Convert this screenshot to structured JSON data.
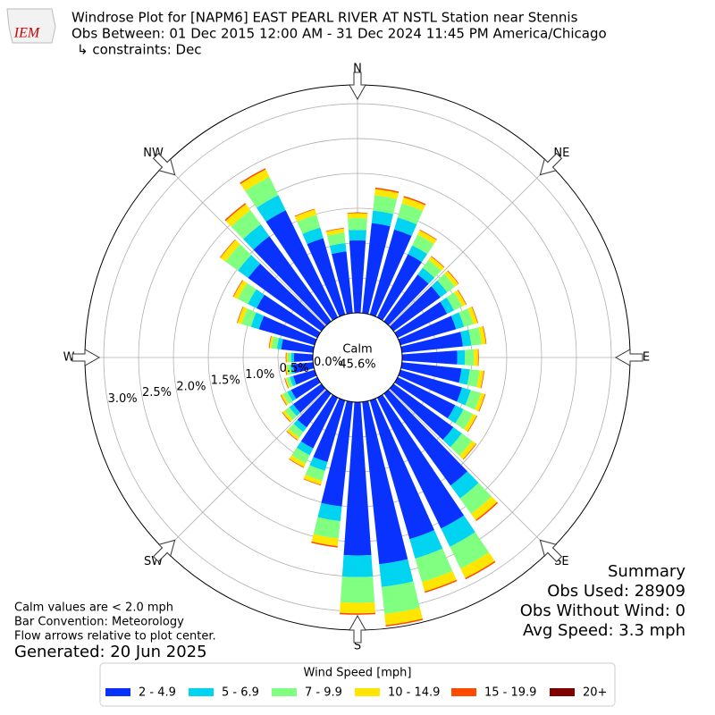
{
  "logo": "IEM",
  "chart_data": {
    "type": "windrose",
    "title": "Windrose Plot for [NAPM6] EAST PEARL RIVER  AT NSTL Station near Stennis",
    "subtitle": "Obs Between: 01 Dec 2015 12:00 AM - 31 Dec 2024 11:45 PM America/Chicago",
    "constraints": "↳ constraints: Dec",
    "calm_label": "Calm",
    "calm_value": {
      "value": 45.6,
      "label": "45.6%"
    },
    "x": [
      0,
      10,
      20,
      30,
      40,
      50,
      60,
      70,
      80,
      90,
      100,
      110,
      120,
      130,
      140,
      150,
      160,
      170,
      180,
      190,
      200,
      210,
      220,
      230,
      240,
      250,
      260,
      270,
      280,
      290,
      300,
      310,
      320,
      330,
      340,
      350
    ],
    "xticks": [
      {
        "value": 0,
        "label": "N"
      },
      {
        "value": 45,
        "label": "NE"
      },
      {
        "value": 90,
        "label": "E"
      },
      {
        "value": 135,
        "label": "SE"
      },
      {
        "value": 180,
        "label": "S"
      },
      {
        "value": 225,
        "label": "SW"
      },
      {
        "value": 270,
        "label": "W"
      },
      {
        "value": 315,
        "label": "NW"
      }
    ],
    "ylim": [
      0,
      3.27
    ],
    "yticks": [
      {
        "value": 0,
        "label": "0.0%"
      },
      {
        "value": 0.5,
        "label": "0.5%"
      },
      {
        "value": 1.0,
        "label": "1.0%"
      },
      {
        "value": 1.5,
        "label": "1.5%"
      },
      {
        "value": 2.0,
        "label": "2.0%"
      },
      {
        "value": 2.5,
        "label": "2.5%"
      },
      {
        "value": 3.0,
        "label": "3.0%"
      }
    ],
    "grid": true,
    "legend_title": "Wind Speed [mph]",
    "series": [
      {
        "name": "2 - 4.9",
        "color": "#0a32ff",
        "values": [
          1.04,
          1.3,
          1.27,
          1.01,
          0.83,
          0.83,
          0.79,
          0.83,
          0.88,
          0.79,
          0.86,
          0.92,
          0.92,
          1.06,
          1.63,
          2.09,
          2.07,
          2.34,
          2.2,
          1.51,
          0.92,
          0.81,
          0.6,
          0.5,
          0.42,
          0.32,
          0.29,
          0.27,
          0.46,
          0.83,
          0.97,
          1.3,
          1.51,
          1.71,
          1.14,
          0.89
        ]
      },
      {
        "name": "5 - 6.9",
        "color": "#00d4f0",
        "values": [
          0.15,
          0.18,
          0.18,
          0.14,
          0.12,
          0.12,
          0.11,
          0.12,
          0.12,
          0.11,
          0.12,
          0.13,
          0.13,
          0.15,
          0.23,
          0.29,
          0.29,
          0.33,
          0.31,
          0.21,
          0.13,
          0.11,
          0.08,
          0.07,
          0.06,
          0.05,
          0.04,
          0.04,
          0.06,
          0.12,
          0.14,
          0.18,
          0.21,
          0.24,
          0.16,
          0.12
        ]
      },
      {
        "name": "7 - 9.9",
        "color": "#80ff80",
        "values": [
          0.17,
          0.22,
          0.21,
          0.17,
          0.14,
          0.14,
          0.13,
          0.14,
          0.15,
          0.13,
          0.14,
          0.15,
          0.15,
          0.18,
          0.27,
          0.35,
          0.35,
          0.39,
          0.37,
          0.25,
          0.15,
          0.13,
          0.1,
          0.08,
          0.07,
          0.05,
          0.05,
          0.05,
          0.08,
          0.14,
          0.16,
          0.22,
          0.25,
          0.29,
          0.19,
          0.15
        ]
      },
      {
        "name": "10 - 14.9",
        "color": "#ffe600",
        "values": [
          0.07,
          0.09,
          0.09,
          0.07,
          0.06,
          0.06,
          0.06,
          0.06,
          0.06,
          0.06,
          0.06,
          0.06,
          0.06,
          0.07,
          0.11,
          0.15,
          0.14,
          0.16,
          0.15,
          0.11,
          0.06,
          0.06,
          0.04,
          0.04,
          0.03,
          0.02,
          0.02,
          0.02,
          0.03,
          0.06,
          0.07,
          0.09,
          0.11,
          0.12,
          0.08,
          0.06
        ]
      },
      {
        "name": "15 - 19.9",
        "color": "#ff4a00",
        "values": [
          0.01,
          0.02,
          0.02,
          0.01,
          0.01,
          0.01,
          0.01,
          0.01,
          0.01,
          0.01,
          0.01,
          0.01,
          0.01,
          0.01,
          0.02,
          0.02,
          0.02,
          0.02,
          0.02,
          0.02,
          0.01,
          0.01,
          0.01,
          0.01,
          0.01,
          0.01,
          0.01,
          0.01,
          0.01,
          0.01,
          0.01,
          0.01,
          0.02,
          0.02,
          0.01,
          0.01
        ]
      },
      {
        "name": "20+",
        "color": "#800000",
        "values": [
          0,
          0,
          0,
          0,
          0,
          0,
          0,
          0,
          0,
          0,
          0,
          0,
          0,
          0,
          0,
          0,
          0,
          0,
          0,
          0,
          0,
          0,
          0,
          0,
          0,
          0,
          0,
          0,
          0,
          0,
          0,
          0,
          0,
          0,
          0,
          0
        ]
      }
    ],
    "notes": [
      "Calm values are < 2.0 mph",
      "Bar Convention: Meteorology",
      "Flow arrows relative to plot center."
    ],
    "generated": "Generated: 20 Jun 2025",
    "summary": [
      "Summary",
      "Obs Used: 28909",
      "Obs Without Wind: 0",
      "Avg Speed: 3.3 mph"
    ]
  }
}
